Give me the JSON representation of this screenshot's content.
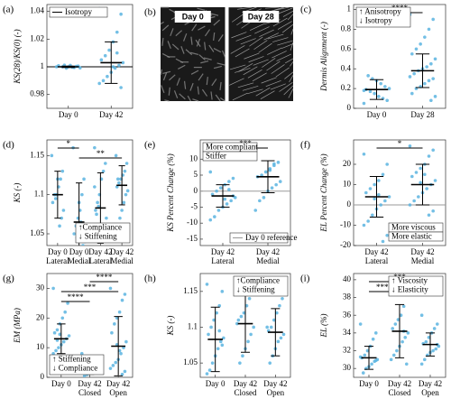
{
  "chart_data": [
    {
      "type": "dotplot",
      "panel": "(a)",
      "ylabel": "KS(28)/KS(0) (-)",
      "color": "#5ab4e0",
      "categories": [
        [
          "Day 0"
        ],
        [
          "Day 42"
        ]
      ],
      "groups": [
        {
          "values": [
            1.0,
            1.0005,
            0.9995,
            1.001,
            0.999,
            1.0,
            1.0008,
            0.9992,
            1.0003,
            0.9997,
            1.0,
            1.0012
          ],
          "mean": 1.0,
          "sd": 0.0005
        },
        {
          "values": [
            1.042,
            1.038,
            1.025,
            1.018,
            1.012,
            1.008,
            1.005,
            1.003,
            1.001,
            0.999,
            0.996,
            0.993,
            0.99,
            0.988,
            0.985,
            1.01,
            1.0
          ],
          "mean": 1.003,
          "sd": 0.015
        }
      ],
      "ylim": [
        0.97,
        1.045
      ],
      "yticks": [
        0.98,
        1,
        1.02,
        1.04
      ],
      "reference": {
        "value": 1,
        "label": "Isotropy",
        "color": "#000000"
      },
      "legend_corner": "upper left"
    },
    {
      "type": "image",
      "panel": "(b)",
      "labels": [
        "Day 0",
        "Day 28"
      ]
    },
    {
      "type": "dotplot",
      "panel": "(c)",
      "ylabel": "Dermis Alignment (-)",
      "color": "#5ab4e0",
      "categories": [
        [
          "Day 0"
        ],
        [
          "Day 28"
        ]
      ],
      "groups": [
        {
          "values": [
            0.05,
            0.08,
            0.1,
            0.12,
            0.15,
            0.17,
            0.19,
            0.2,
            0.22,
            0.25,
            0.28,
            0.3,
            0.33,
            0.18
          ],
          "mean": 0.19,
          "sd": 0.1
        },
        {
          "values": [
            0.95,
            0.9,
            0.8,
            0.72,
            0.65,
            0.6,
            0.55,
            0.5,
            0.45,
            0.42,
            0.4,
            0.38,
            0.35,
            0.32,
            0.3,
            0.28,
            0.25,
            0.22,
            0.2,
            0.15,
            0.12,
            0.08
          ],
          "mean": 0.38,
          "sd": 0.17
        }
      ],
      "ylim": [
        0,
        1.05
      ],
      "yticks": [
        0,
        0.2,
        0.4,
        0.6,
        0.8,
        1
      ],
      "sig": [
        {
          "from": 0,
          "to": 1,
          "label": "****"
        }
      ],
      "notes": [
        "↑ Anisotropy",
        "↓ Isotropy"
      ],
      "notes_corner": "upper left",
      "notes_boxed": false
    },
    {
      "type": "dotplot",
      "panel": "(d)",
      "ylabel": "KS (-)",
      "color": "#5ab4e0",
      "categories": [
        [
          "Day 0",
          "Lateral"
        ],
        [
          "Day 0",
          "Medial"
        ],
        [
          "Day 42",
          "Lateral"
        ],
        [
          "Day 42",
          "Medial"
        ]
      ],
      "groups": [
        {
          "values": [
            1.15,
            1.13,
            1.12,
            1.11,
            1.1,
            1.1,
            1.09,
            1.08,
            1.07,
            1.06,
            1.12,
            1.095
          ],
          "mean": 1.1,
          "sd": 0.03
        },
        {
          "values": [
            1.16,
            1.12,
            1.1,
            1.08,
            1.07,
            1.06,
            1.05,
            1.04,
            1.035,
            1.065,
            1.09,
            1.045
          ],
          "mean": 1.065,
          "sd": 0.05
        },
        {
          "values": [
            1.16,
            1.14,
            1.13,
            1.12,
            1.1,
            1.09,
            1.08,
            1.07,
            1.06,
            1.05,
            1.04,
            1.085,
            1.075,
            1.11
          ],
          "mean": 1.083,
          "sd": 0.045
        },
        {
          "values": [
            1.15,
            1.14,
            1.13,
            1.125,
            1.12,
            1.115,
            1.11,
            1.105,
            1.1,
            1.09,
            1.08,
            1.07,
            1.12
          ],
          "mean": 1.112,
          "sd": 0.025
        }
      ],
      "ylim": [
        1.035,
        1.17
      ],
      "yticks": [
        1.05,
        1.1,
        1.15
      ],
      "sig": [
        {
          "from": 0,
          "to": 1,
          "label": "*"
        },
        {
          "from": 1,
          "to": 3,
          "label": "**"
        }
      ],
      "notes": [
        "↑Compliance",
        "↓ Stiffening"
      ],
      "notes_corner": "lower right",
      "notes_boxed": false
    },
    {
      "type": "dotplot",
      "panel": "(e)",
      "ylabel": "KS Percent Change (%)",
      "color": "#5ab4e0",
      "categories": [
        [
          "Day 42",
          "Lateral"
        ],
        [
          "Day 42",
          "Medial"
        ]
      ],
      "groups": [
        {
          "values": [
            6,
            4,
            3,
            2,
            1,
            0,
            -1,
            -2,
            -3,
            -4,
            -5,
            -6,
            -8,
            -9,
            -1.5,
            0.5,
            -2.5
          ],
          "mean": -1.5,
          "sd": 3.5
        },
        {
          "values": [
            10,
            9,
            8,
            7,
            6,
            5,
            4.5,
            3,
            2,
            1,
            0,
            -2,
            -3,
            -6,
            -15,
            8.5,
            6.5
          ],
          "mean": 4.5,
          "sd": 5
        }
      ],
      "ylim": [
        -17,
        16
      ],
      "yticks": [
        -15,
        -10,
        -5,
        0,
        5,
        10
      ],
      "sig": [
        {
          "from": 0,
          "to": 1,
          "label": "***"
        }
      ],
      "reference": {
        "value": 0,
        "label": "Day 0 reference",
        "color": "#999999"
      },
      "legend_corner": "lower right",
      "notes": [
        "More compliant",
        "Stiffer"
      ],
      "notes_corner": "upper left",
      "notes_boxed": true
    },
    {
      "type": "dotplot",
      "panel": "(f)",
      "ylabel": "EL Percent Change (%)",
      "color": "#5ab4e0",
      "categories": [
        [
          "Day 42",
          "Lateral"
        ],
        [
          "Day 42",
          "Medial"
        ]
      ],
      "groups": [
        {
          "values": [
            25,
            20,
            15,
            12,
            10,
            8,
            6,
            4,
            2,
            0,
            -2,
            -5,
            -8,
            -10,
            -15,
            -18,
            5,
            3
          ],
          "mean": 4,
          "sd": 10
        },
        {
          "values": [
            29,
            27,
            24,
            20,
            18,
            16,
            14,
            12,
            10,
            8,
            6,
            4,
            2,
            0,
            -3,
            -5,
            15,
            11
          ],
          "mean": 10,
          "sd": 10
        }
      ],
      "ylim": [
        -20,
        32
      ],
      "yticks": [
        -20,
        -10,
        0,
        10,
        20
      ],
      "sig": [
        {
          "from": 0,
          "to": 1,
          "label": "*"
        }
      ],
      "reference": {
        "value": 0,
        "color": "#999999"
      },
      "notes": [
        "More viscous",
        "More elastic"
      ],
      "notes_corner": "lower right",
      "notes_boxed": true
    },
    {
      "type": "dotplot",
      "panel": "(g)",
      "ylabel": "EM (MPa)",
      "color": "#5ab4e0",
      "categories": [
        [
          "Day 0"
        ],
        [
          "Day 42",
          "Closed"
        ],
        [
          "Day 42",
          "Open"
        ]
      ],
      "groups": [
        {
          "values": [
            30,
            25,
            22,
            20,
            18,
            16,
            15,
            14,
            13,
            12,
            11,
            10,
            9,
            8,
            7,
            6,
            5,
            14.5,
            12.5
          ],
          "mean": 13,
          "sd": 5
        },
        {
          "values": [
            8,
            7,
            6,
            5,
            4.5,
            4,
            3.5,
            3,
            2.5,
            2,
            1.5,
            1,
            0.5,
            3.8
          ],
          "mean": 4,
          "sd": 3
        },
        {
          "values": [
            30,
            28,
            26,
            22,
            20,
            18,
            15,
            12,
            10,
            8,
            6,
            5,
            4,
            3,
            2,
            1,
            9,
            11
          ],
          "mean": 10.5,
          "sd": 10
        }
      ],
      "ylim": [
        0,
        35
      ],
      "yticks": [
        0,
        10,
        20,
        30
      ],
      "sig": [
        {
          "from": 1,
          "to": 2,
          "label": "****"
        },
        {
          "from": 0,
          "to": 2,
          "label": "***"
        },
        {
          "from": 0,
          "to": 1,
          "label": "****"
        }
      ],
      "notes": [
        "↑ Stiffening",
        "↓ Compliance"
      ],
      "notes_corner": "lower left",
      "notes_boxed": false
    },
    {
      "type": "dotplot",
      "panel": "(h)",
      "ylabel": "KS (-)",
      "color": "#5ab4e0",
      "categories": [
        [
          "Day 0"
        ],
        [
          "Day 42",
          "Closed"
        ],
        [
          "Day 42",
          "Open"
        ]
      ],
      "groups": [
        {
          "values": [
            1.16,
            1.15,
            1.13,
            1.12,
            1.11,
            1.1,
            1.09,
            1.085,
            1.08,
            1.07,
            1.06,
            1.05,
            1.04,
            1.035,
            1.075,
            1.095
          ],
          "mean": 1.083,
          "sd": 0.045
        },
        {
          "values": [
            1.16,
            1.15,
            1.14,
            1.13,
            1.12,
            1.115,
            1.11,
            1.1,
            1.09,
            1.08,
            1.07,
            1.06,
            1.05,
            1.105
          ],
          "mean": 1.105,
          "sd": 0.04
        },
        {
          "values": [
            1.15,
            1.14,
            1.13,
            1.12,
            1.11,
            1.1,
            1.095,
            1.09,
            1.085,
            1.08,
            1.07,
            1.06,
            1.05,
            1.1
          ],
          "mean": 1.093,
          "sd": 0.033
        }
      ],
      "ylim": [
        1.03,
        1.175
      ],
      "yticks": [
        1.05,
        1.1,
        1.15
      ],
      "notes": [
        "↑Compliance",
        "↓ Stiffening"
      ],
      "notes_corner": "upper right",
      "notes_boxed": false
    },
    {
      "type": "dotplot",
      "panel": "(i)",
      "ylabel": "EL (%)",
      "color": "#5ab4e0",
      "categories": [
        [
          "Day 0"
        ],
        [
          "Day 42",
          "Closed"
        ],
        [
          "Day 42",
          "Open"
        ]
      ],
      "groups": [
        {
          "values": [
            35,
            34,
            33.3,
            32.5,
            32,
            31.5,
            31.2,
            31,
            30.8,
            30.5,
            30.2,
            30,
            29.5,
            31.3,
            30.9
          ],
          "mean": 31.2,
          "sd": 1.3
        },
        {
          "values": [
            40,
            38.5,
            37,
            36,
            35.5,
            35,
            34.5,
            34,
            33.5,
            33,
            32.5,
            32,
            31.5,
            31,
            30.5,
            34.2
          ],
          "mean": 34.2,
          "sd": 3
        },
        {
          "values": [
            36,
            35,
            34.5,
            34,
            33.5,
            33,
            32.8,
            32.5,
            32.2,
            32,
            31.8,
            31.5,
            31,
            30.5,
            32.7
          ],
          "mean": 32.7,
          "sd": 1.3
        }
      ],
      "ylim": [
        29,
        40.7
      ],
      "yticks": [
        30,
        32,
        34,
        36,
        38,
        40
      ],
      "sig": [
        {
          "from": 0,
          "to": 2,
          "label": "***"
        },
        {
          "from": 0,
          "to": 1,
          "label": "****"
        }
      ],
      "notes": [
        "↑ Viscosity",
        "↓ Elasticity"
      ],
      "notes_corner": "upper right",
      "notes_boxed": false
    }
  ]
}
